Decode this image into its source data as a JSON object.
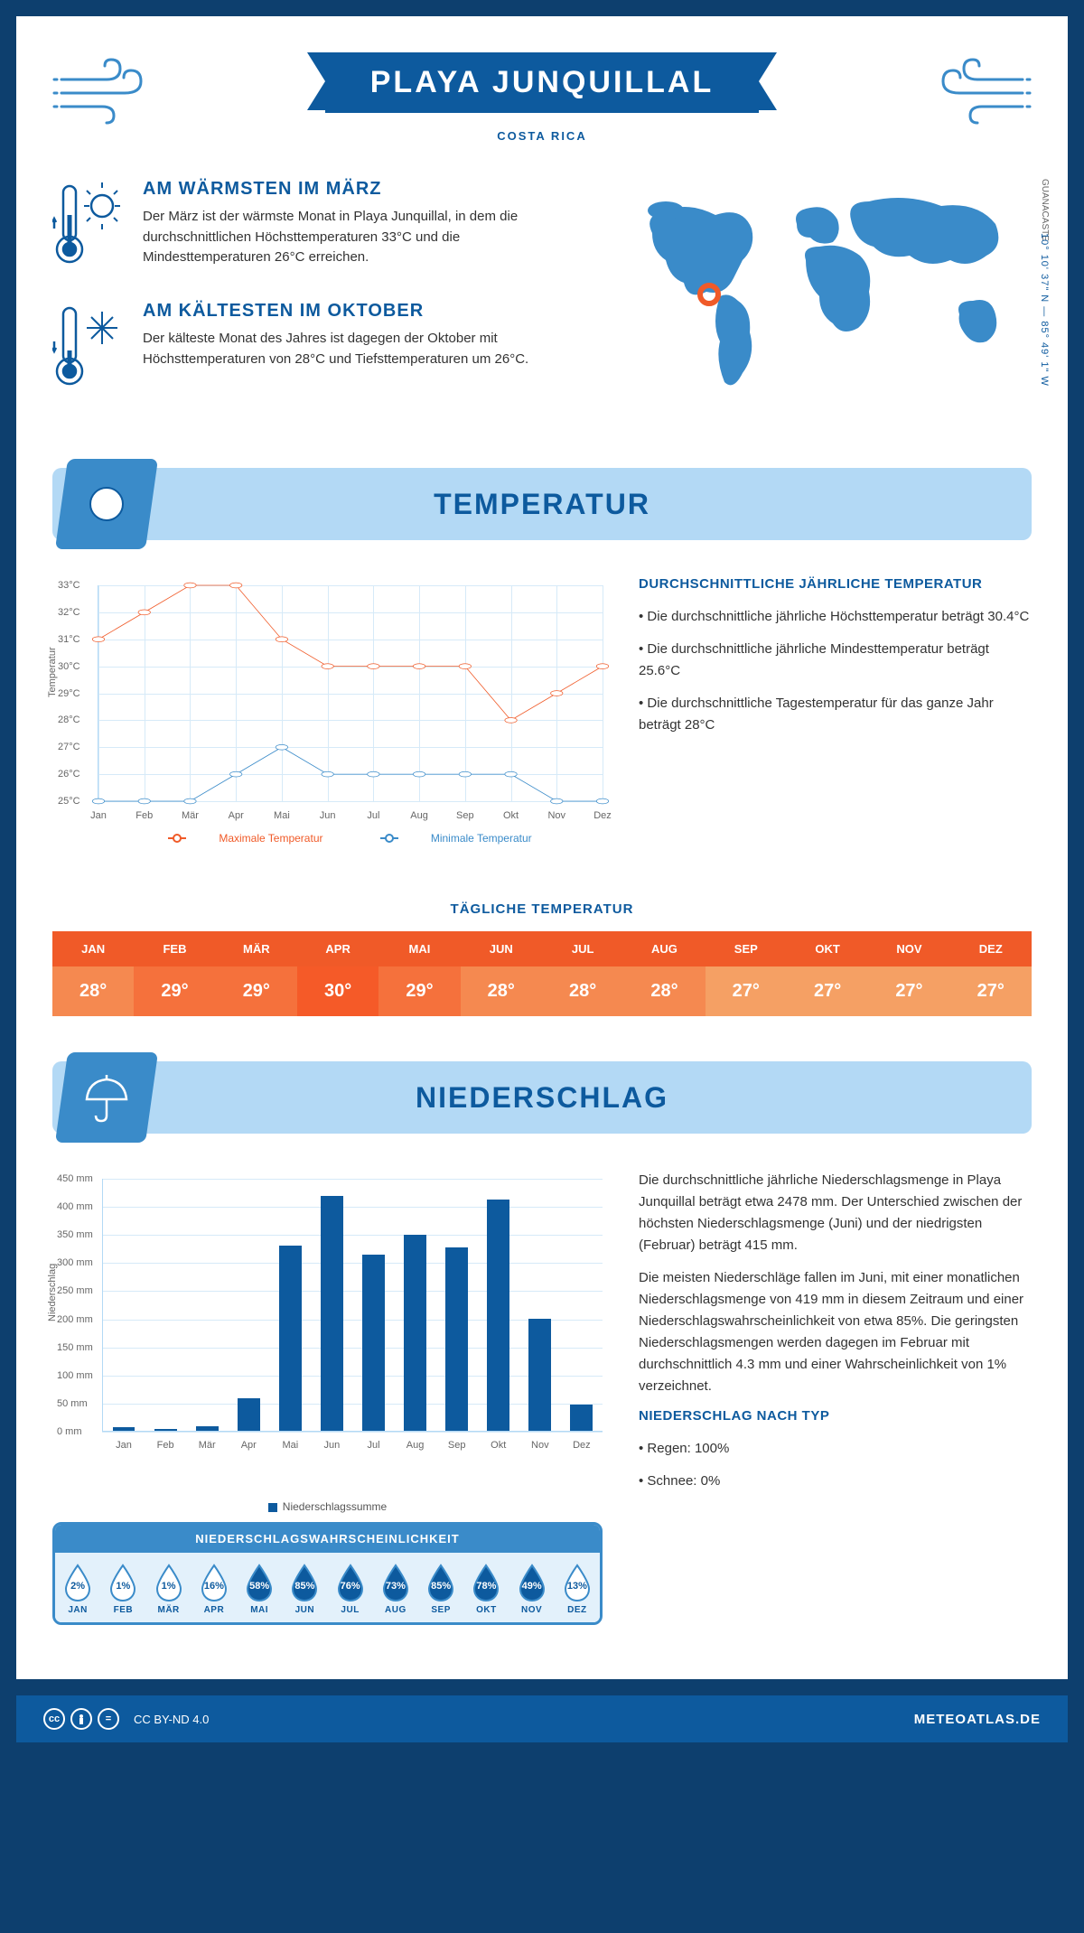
{
  "header": {
    "title": "PLAYA JUNQUILLAL",
    "subtitle": "COSTA RICA",
    "region": "GUANACASTE",
    "coords": "10° 10' 37\" N — 85° 49' 1\" W"
  },
  "info": {
    "warmest": {
      "title": "AM WÄRMSTEN IM MÄRZ",
      "text": "Der März ist der wärmste Monat in Playa Junquillal, in dem die durchschnittlichen Höchsttemperaturen 33°C und die Mindesttemperaturen 26°C erreichen."
    },
    "coldest": {
      "title": "AM KÄLTESTEN IM OKTOBER",
      "text": "Der kälteste Monat des Jahres ist dagegen der Oktober mit Höchsttemperaturen von 28°C und Tiefsttemperaturen um 26°C."
    }
  },
  "months": [
    "Jan",
    "Feb",
    "Mär",
    "Apr",
    "Mai",
    "Jun",
    "Jul",
    "Aug",
    "Sep",
    "Okt",
    "Nov",
    "Dez"
  ],
  "months_upper": [
    "JAN",
    "FEB",
    "MÄR",
    "APR",
    "MAI",
    "JUN",
    "JUL",
    "AUG",
    "SEP",
    "OKT",
    "NOV",
    "DEZ"
  ],
  "temperature": {
    "section_title": "TEMPERATUR",
    "y_label": "Temperatur",
    "y_ticks": [
      "25°C",
      "26°C",
      "27°C",
      "28°C",
      "29°C",
      "30°C",
      "31°C",
      "32°C",
      "33°C"
    ],
    "ylim": [
      25,
      33
    ],
    "max_series": [
      31,
      32,
      33,
      33,
      31,
      30,
      30,
      30,
      30,
      28,
      29,
      30
    ],
    "min_series": [
      25,
      25,
      25,
      26,
      27,
      26,
      26,
      26,
      26,
      26,
      25,
      25
    ],
    "max_color": "#f05a28",
    "min_color": "#3a8bc9",
    "grid_color": "#d6eaf8",
    "legend_max": "Maximale Temperatur",
    "legend_min": "Minimale Temperatur",
    "side_title": "DURCHSCHNITTLICHE JÄHRLICHE TEMPERATUR",
    "side_points": [
      "Die durchschnittliche jährliche Höchsttemperatur beträgt 30.4°C",
      "Die durchschnittliche jährliche Mindesttemperatur beträgt 25.6°C",
      "Die durchschnittliche Tagestemperatur für das ganze Jahr beträgt 28°C"
    ],
    "daily_title": "TÄGLICHE TEMPERATUR",
    "daily_values": [
      "28°",
      "29°",
      "29°",
      "30°",
      "29°",
      "28°",
      "28°",
      "28°",
      "27°",
      "27°",
      "27°",
      "27°"
    ],
    "daily_header_bg": "#f05a28",
    "daily_value_bg": "#f57e42",
    "daily_range": [
      27,
      30
    ]
  },
  "precipitation": {
    "section_title": "NIEDERSCHLAG",
    "y_label": "Niederschlag",
    "ylim": [
      0,
      450
    ],
    "y_ticks": [
      0,
      50,
      100,
      150,
      200,
      250,
      300,
      350,
      400,
      450
    ],
    "values": [
      7,
      4,
      8,
      58,
      330,
      419,
      315,
      350,
      328,
      413,
      200,
      46
    ],
    "bar_color": "#0d5a9e",
    "legend": "Niederschlagssumme",
    "side_text1": "Die durchschnittliche jährliche Niederschlagsmenge in Playa Junquillal beträgt etwa 2478 mm. Der Unterschied zwischen der höchsten Niederschlagsmenge (Juni) und der niedrigsten (Februar) beträgt 415 mm.",
    "side_text2": "Die meisten Niederschläge fallen im Juni, mit einer monatlichen Niederschlagsmenge von 419 mm in diesem Zeitraum und einer Niederschlagswahrscheinlichkeit von etwa 85%. Die geringsten Niederschlagsmengen werden dagegen im Februar mit durchschnittlich 4.3 mm und einer Wahrscheinlichkeit von 1% verzeichnet.",
    "type_title": "NIEDERSCHLAG NACH TYP",
    "type_points": [
      "Regen: 100%",
      "Schnee: 0%"
    ],
    "prob_title": "NIEDERSCHLAGSWAHRSCHEINLICHKEIT",
    "prob_values": [
      2,
      1,
      1,
      16,
      58,
      85,
      76,
      73,
      85,
      78,
      49,
      13
    ],
    "drop_fill_dark": "#0d5a9e",
    "drop_fill_light": "#ffffff",
    "drop_outline": "#3a8bc9"
  },
  "footer": {
    "license": "CC BY-ND 4.0",
    "brand": "METEOATLAS.DE"
  }
}
